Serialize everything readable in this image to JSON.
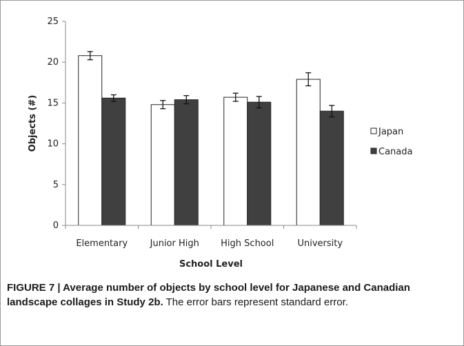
{
  "chart_data": {
    "type": "bar",
    "categories": [
      "Elementary",
      "Junior High",
      "High School",
      "University"
    ],
    "series": [
      {
        "name": "Japan",
        "color": "#ffffff",
        "values": [
          20.8,
          14.8,
          15.7,
          17.9
        ],
        "errors": [
          0.5,
          0.5,
          0.5,
          0.8
        ]
      },
      {
        "name": "Canada",
        "color": "#404040",
        "values": [
          15.6,
          15.4,
          15.1,
          14.0
        ],
        "errors": [
          0.4,
          0.5,
          0.7,
          0.7
        ]
      }
    ],
    "xlabel": "School Level",
    "ylabel": "Objects (#)",
    "ylim": [
      0,
      25
    ],
    "yticks": [
      "0",
      "5",
      "10",
      "15",
      "20",
      "25"
    ],
    "grid": false,
    "legend": "right"
  },
  "caption": {
    "lead": "FIGURE 7 | Average number of objects by school level for Japanese and Canadian landscape collages in Study 2b.",
    "body": " The error bars represent standard error."
  }
}
